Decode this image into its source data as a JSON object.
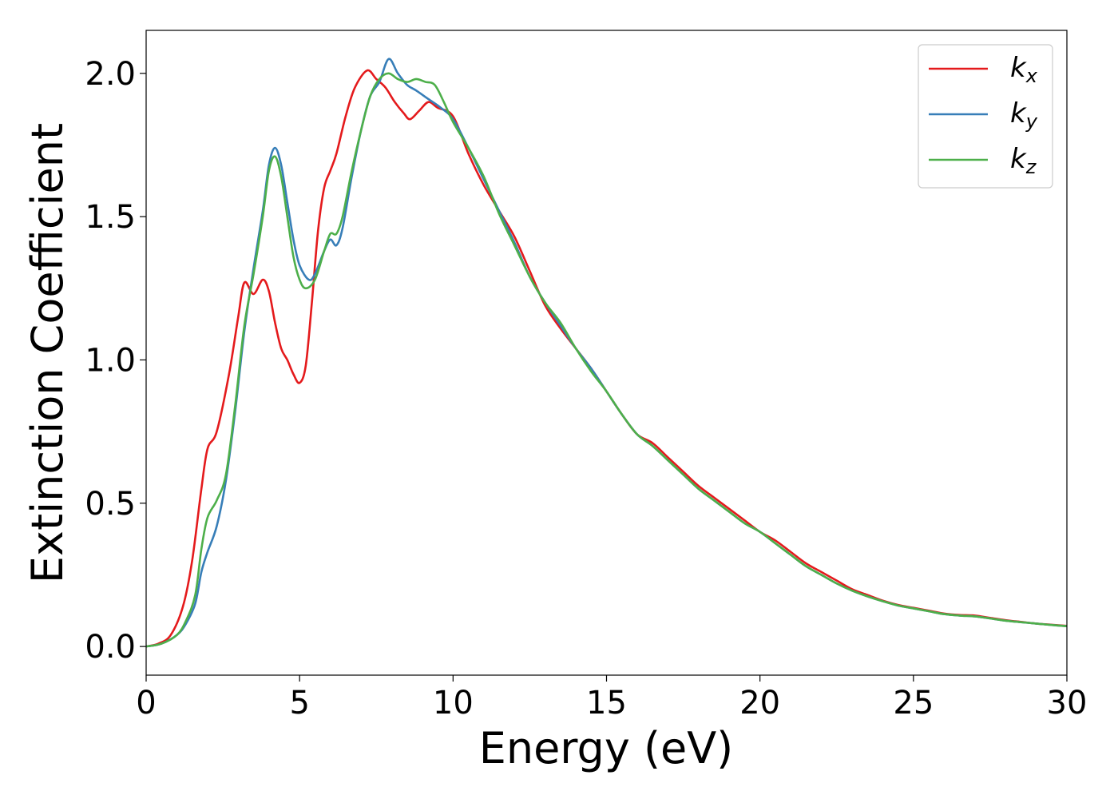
{
  "chart_data": {
    "type": "line",
    "xlabel": "Energy (eV)",
    "ylabel": "Extinction Coefficient",
    "xlim": [
      0,
      30
    ],
    "ylim": [
      -0.1,
      2.15
    ],
    "x_ticks": [
      0,
      5,
      10,
      15,
      20,
      25,
      30
    ],
    "x_tick_labels": [
      "0",
      "5",
      "10",
      "15",
      "20",
      "25",
      "30"
    ],
    "y_ticks": [
      0.0,
      0.5,
      1.0,
      1.5,
      2.0
    ],
    "y_tick_labels": [
      "0.0",
      "0.5",
      "1.0",
      "1.5",
      "2.0"
    ],
    "grid": false,
    "legend_position": "top-right",
    "series": [
      {
        "name": "kx",
        "label_base": "k",
        "label_sub": "x",
        "color": "#e41a1c",
        "points": [
          [
            0,
            0
          ],
          [
            0.4,
            0.01
          ],
          [
            0.8,
            0.04
          ],
          [
            1.2,
            0.14
          ],
          [
            1.5,
            0.3
          ],
          [
            1.8,
            0.55
          ],
          [
            2.0,
            0.69
          ],
          [
            2.3,
            0.75
          ],
          [
            2.7,
            0.95
          ],
          [
            3.0,
            1.15
          ],
          [
            3.2,
            1.27
          ],
          [
            3.5,
            1.23
          ],
          [
            3.8,
            1.28
          ],
          [
            4.0,
            1.24
          ],
          [
            4.2,
            1.13
          ],
          [
            4.4,
            1.04
          ],
          [
            4.6,
            1.0
          ],
          [
            4.8,
            0.95
          ],
          [
            5.0,
            0.92
          ],
          [
            5.2,
            0.98
          ],
          [
            5.4,
            1.2
          ],
          [
            5.6,
            1.45
          ],
          [
            5.8,
            1.6
          ],
          [
            6.0,
            1.66
          ],
          [
            6.2,
            1.72
          ],
          [
            6.5,
            1.85
          ],
          [
            6.8,
            1.95
          ],
          [
            7.2,
            2.01
          ],
          [
            7.5,
            1.98
          ],
          [
            7.8,
            1.95
          ],
          [
            8.1,
            1.9
          ],
          [
            8.4,
            1.86
          ],
          [
            8.6,
            1.84
          ],
          [
            8.9,
            1.87
          ],
          [
            9.2,
            1.9
          ],
          [
            9.5,
            1.88
          ],
          [
            10.0,
            1.85
          ],
          [
            10.5,
            1.72
          ],
          [
            11.0,
            1.61
          ],
          [
            11.5,
            1.52
          ],
          [
            12.0,
            1.43
          ],
          [
            12.5,
            1.31
          ],
          [
            13.0,
            1.19
          ],
          [
            13.5,
            1.11
          ],
          [
            14.0,
            1.04
          ],
          [
            14.5,
            0.97
          ],
          [
            15.0,
            0.89
          ],
          [
            15.5,
            0.81
          ],
          [
            16.0,
            0.74
          ],
          [
            16.5,
            0.71
          ],
          [
            17.0,
            0.66
          ],
          [
            17.5,
            0.61
          ],
          [
            18.0,
            0.56
          ],
          [
            18.5,
            0.52
          ],
          [
            19.0,
            0.48
          ],
          [
            19.5,
            0.44
          ],
          [
            20.0,
            0.4
          ],
          [
            20.5,
            0.37
          ],
          [
            21.0,
            0.33
          ],
          [
            21.5,
            0.29
          ],
          [
            22.0,
            0.26
          ],
          [
            22.5,
            0.23
          ],
          [
            23.0,
            0.2
          ],
          [
            23.5,
            0.18
          ],
          [
            24.0,
            0.16
          ],
          [
            24.5,
            0.145
          ],
          [
            25.0,
            0.135
          ],
          [
            25.5,
            0.125
          ],
          [
            26.0,
            0.115
          ],
          [
            26.5,
            0.11
          ],
          [
            27.0,
            0.108
          ],
          [
            27.5,
            0.1
          ],
          [
            28.0,
            0.092
          ],
          [
            28.5,
            0.086
          ],
          [
            29.0,
            0.08
          ],
          [
            29.5,
            0.076
          ],
          [
            30.0,
            0.072
          ]
        ]
      },
      {
        "name": "ky",
        "label_base": "k",
        "label_sub": "y",
        "color": "#377eb8",
        "points": [
          [
            0,
            0
          ],
          [
            0.5,
            0.01
          ],
          [
            1.0,
            0.04
          ],
          [
            1.3,
            0.08
          ],
          [
            1.6,
            0.15
          ],
          [
            1.8,
            0.26
          ],
          [
            2.0,
            0.33
          ],
          [
            2.3,
            0.42
          ],
          [
            2.6,
            0.58
          ],
          [
            2.9,
            0.82
          ],
          [
            3.2,
            1.1
          ],
          [
            3.5,
            1.32
          ],
          [
            3.8,
            1.52
          ],
          [
            4.0,
            1.68
          ],
          [
            4.2,
            1.74
          ],
          [
            4.4,
            1.68
          ],
          [
            4.6,
            1.55
          ],
          [
            4.8,
            1.42
          ],
          [
            5.0,
            1.33
          ],
          [
            5.3,
            1.28
          ],
          [
            5.5,
            1.3
          ],
          [
            5.8,
            1.38
          ],
          [
            6.0,
            1.42
          ],
          [
            6.2,
            1.4
          ],
          [
            6.4,
            1.46
          ],
          [
            6.7,
            1.64
          ],
          [
            7.0,
            1.8
          ],
          [
            7.3,
            1.92
          ],
          [
            7.6,
            1.97
          ],
          [
            7.9,
            2.05
          ],
          [
            8.2,
            2.0
          ],
          [
            8.5,
            1.96
          ],
          [
            8.8,
            1.94
          ],
          [
            9.2,
            1.91
          ],
          [
            9.6,
            1.88
          ],
          [
            10.0,
            1.84
          ],
          [
            10.5,
            1.74
          ],
          [
            11.0,
            1.63
          ],
          [
            11.5,
            1.52
          ],
          [
            12.0,
            1.41
          ],
          [
            12.5,
            1.29
          ],
          [
            13.0,
            1.2
          ],
          [
            13.5,
            1.12
          ],
          [
            14.0,
            1.04
          ],
          [
            14.5,
            0.97
          ],
          [
            15.0,
            0.89
          ],
          [
            15.5,
            0.81
          ],
          [
            16.0,
            0.74
          ],
          [
            16.5,
            0.7
          ],
          [
            17.0,
            0.65
          ],
          [
            17.5,
            0.6
          ],
          [
            18.0,
            0.55
          ],
          [
            18.5,
            0.51
          ],
          [
            19.0,
            0.47
          ],
          [
            19.5,
            0.43
          ],
          [
            20.0,
            0.4
          ],
          [
            20.5,
            0.36
          ],
          [
            21.0,
            0.32
          ],
          [
            21.5,
            0.28
          ],
          [
            22.0,
            0.25
          ],
          [
            22.5,
            0.22
          ],
          [
            23.0,
            0.195
          ],
          [
            23.5,
            0.175
          ],
          [
            24.0,
            0.158
          ],
          [
            24.5,
            0.143
          ],
          [
            25.0,
            0.133
          ],
          [
            25.5,
            0.123
          ],
          [
            26.0,
            0.113
          ],
          [
            26.5,
            0.108
          ],
          [
            27.0,
            0.105
          ],
          [
            27.5,
            0.098
          ],
          [
            28.0,
            0.09
          ],
          [
            28.5,
            0.085
          ],
          [
            29.0,
            0.08
          ],
          [
            29.5,
            0.075
          ],
          [
            30.0,
            0.071
          ]
        ]
      },
      {
        "name": "kz",
        "label_base": "k",
        "label_sub": "z",
        "color": "#4daf4a",
        "points": [
          [
            0,
            0
          ],
          [
            0.5,
            0.01
          ],
          [
            1.0,
            0.04
          ],
          [
            1.3,
            0.09
          ],
          [
            1.6,
            0.18
          ],
          [
            1.8,
            0.34
          ],
          [
            2.0,
            0.45
          ],
          [
            2.3,
            0.51
          ],
          [
            2.6,
            0.6
          ],
          [
            2.9,
            0.84
          ],
          [
            3.2,
            1.12
          ],
          [
            3.5,
            1.3
          ],
          [
            3.8,
            1.5
          ],
          [
            4.0,
            1.66
          ],
          [
            4.2,
            1.71
          ],
          [
            4.4,
            1.64
          ],
          [
            4.6,
            1.5
          ],
          [
            4.8,
            1.36
          ],
          [
            5.0,
            1.28
          ],
          [
            5.2,
            1.25
          ],
          [
            5.5,
            1.28
          ],
          [
            5.8,
            1.38
          ],
          [
            6.0,
            1.44
          ],
          [
            6.2,
            1.44
          ],
          [
            6.4,
            1.5
          ],
          [
            6.7,
            1.66
          ],
          [
            7.0,
            1.8
          ],
          [
            7.3,
            1.92
          ],
          [
            7.6,
            1.98
          ],
          [
            7.9,
            2.0
          ],
          [
            8.2,
            1.98
          ],
          [
            8.5,
            1.97
          ],
          [
            8.8,
            1.98
          ],
          [
            9.1,
            1.97
          ],
          [
            9.4,
            1.96
          ],
          [
            9.7,
            1.9
          ],
          [
            10.0,
            1.83
          ],
          [
            10.5,
            1.74
          ],
          [
            11.0,
            1.64
          ],
          [
            11.5,
            1.51
          ],
          [
            12.0,
            1.4
          ],
          [
            12.5,
            1.29
          ],
          [
            13.0,
            1.2
          ],
          [
            13.5,
            1.13
          ],
          [
            14.0,
            1.04
          ],
          [
            14.5,
            0.96
          ],
          [
            15.0,
            0.89
          ],
          [
            15.5,
            0.81
          ],
          [
            16.0,
            0.74
          ],
          [
            16.5,
            0.7
          ],
          [
            17.0,
            0.65
          ],
          [
            17.5,
            0.6
          ],
          [
            18.0,
            0.55
          ],
          [
            18.5,
            0.51
          ],
          [
            19.0,
            0.47
          ],
          [
            19.5,
            0.43
          ],
          [
            20.0,
            0.4
          ],
          [
            20.5,
            0.36
          ],
          [
            21.0,
            0.32
          ],
          [
            21.5,
            0.28
          ],
          [
            22.0,
            0.25
          ],
          [
            22.5,
            0.22
          ],
          [
            23.0,
            0.195
          ],
          [
            23.5,
            0.175
          ],
          [
            24.0,
            0.158
          ],
          [
            24.5,
            0.143
          ],
          [
            25.0,
            0.133
          ],
          [
            25.5,
            0.123
          ],
          [
            26.0,
            0.113
          ],
          [
            26.5,
            0.108
          ],
          [
            27.0,
            0.105
          ],
          [
            27.5,
            0.098
          ],
          [
            28.0,
            0.09
          ],
          [
            28.5,
            0.085
          ],
          [
            29.0,
            0.08
          ],
          [
            29.5,
            0.075
          ],
          [
            30.0,
            0.071
          ]
        ]
      }
    ]
  }
}
